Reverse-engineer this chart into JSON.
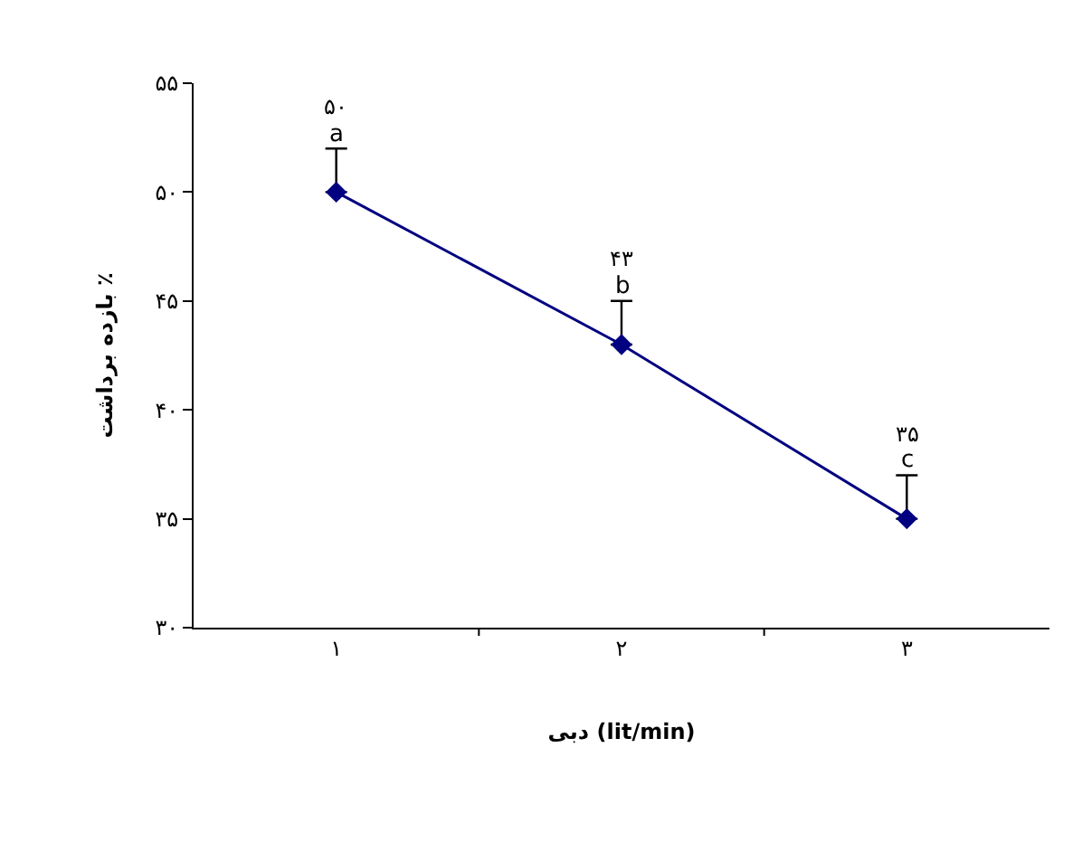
{
  "chart_data": {
    "type": "line",
    "xlabel": "دبی (lit/min)",
    "ylabel": "بازده برداشت ٪",
    "categories": [
      "۱",
      "۲",
      "۳"
    ],
    "series": [
      {
        "color": "#000080",
        "values": [
          50,
          43,
          35
        ],
        "errors": [
          [
            50,
            52
          ],
          [
            43,
            45
          ],
          [
            35,
            37
          ]
        ],
        "value_labels": [
          "۵۰",
          "۴۳",
          "۳۵"
        ]
      }
    ],
    "ylim": [
      30,
      55
    ],
    "yticks": [
      {
        "value": 30,
        "label": "۳۰"
      },
      {
        "value": 35,
        "label": "۳۵"
      },
      {
        "value": 40,
        "label": "۴۰"
      },
      {
        "value": 45,
        "label": "۴۵"
      },
      {
        "value": 50,
        "label": "۵۰"
      },
      {
        "value": 55,
        "label": "۵۵"
      }
    ],
    "annotations": [
      "a",
      "b",
      "c"
    ],
    "marker": "diamond",
    "line_style": "solid"
  }
}
